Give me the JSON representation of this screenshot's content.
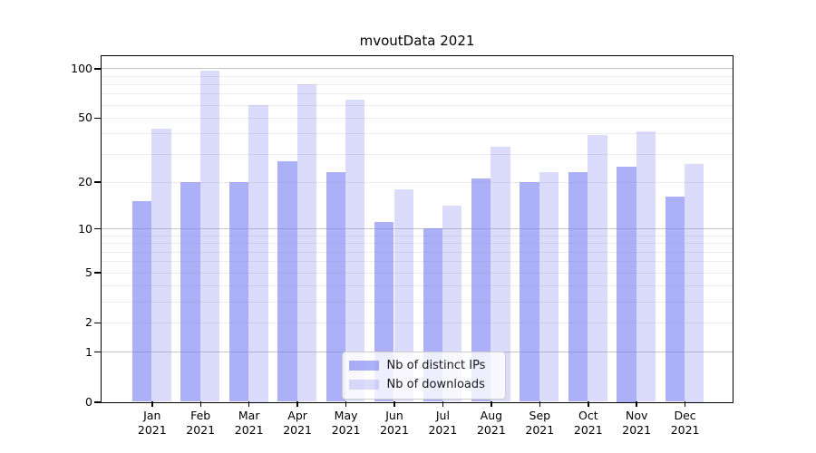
{
  "chart_data": {
    "type": "bar",
    "title": "mvoutData 2021",
    "categories": [
      "Jan",
      "Feb",
      "Mar",
      "Apr",
      "May",
      "Jun",
      "Jul",
      "Aug",
      "Sep",
      "Oct",
      "Nov",
      "Dec"
    ],
    "category_year": "2021",
    "series": [
      {
        "name": "Nb of distinct IPs",
        "color": "rgba(121,127,242,0.62)",
        "values": [
          15,
          20,
          20,
          27,
          23,
          11,
          10,
          21,
          20,
          23,
          25,
          16
        ]
      },
      {
        "name": "Nb of downloads",
        "color": "rgba(121,127,242,0.27)",
        "values": [
          43,
          97,
          60,
          80,
          64,
          18,
          14,
          33,
          23,
          39,
          41,
          26
        ]
      }
    ],
    "xlabel": "",
    "ylabel": "",
    "y_ticks": [
      0,
      1,
      2,
      5,
      10,
      20,
      50,
      100
    ],
    "y_scale": "log1p",
    "ylim": [
      0,
      119
    ],
    "grid": true,
    "grid_major_ticks": [
      1,
      10,
      100
    ],
    "grid_minor_ticks": [
      2,
      3,
      4,
      5,
      6,
      7,
      8,
      9,
      20,
      30,
      40,
      50,
      60,
      70,
      80,
      90
    ],
    "grid_major_color": "#c6c6c6",
    "grid_minor_color": "#ececec",
    "axis_color": "#000000",
    "legend_position": "lower center"
  }
}
